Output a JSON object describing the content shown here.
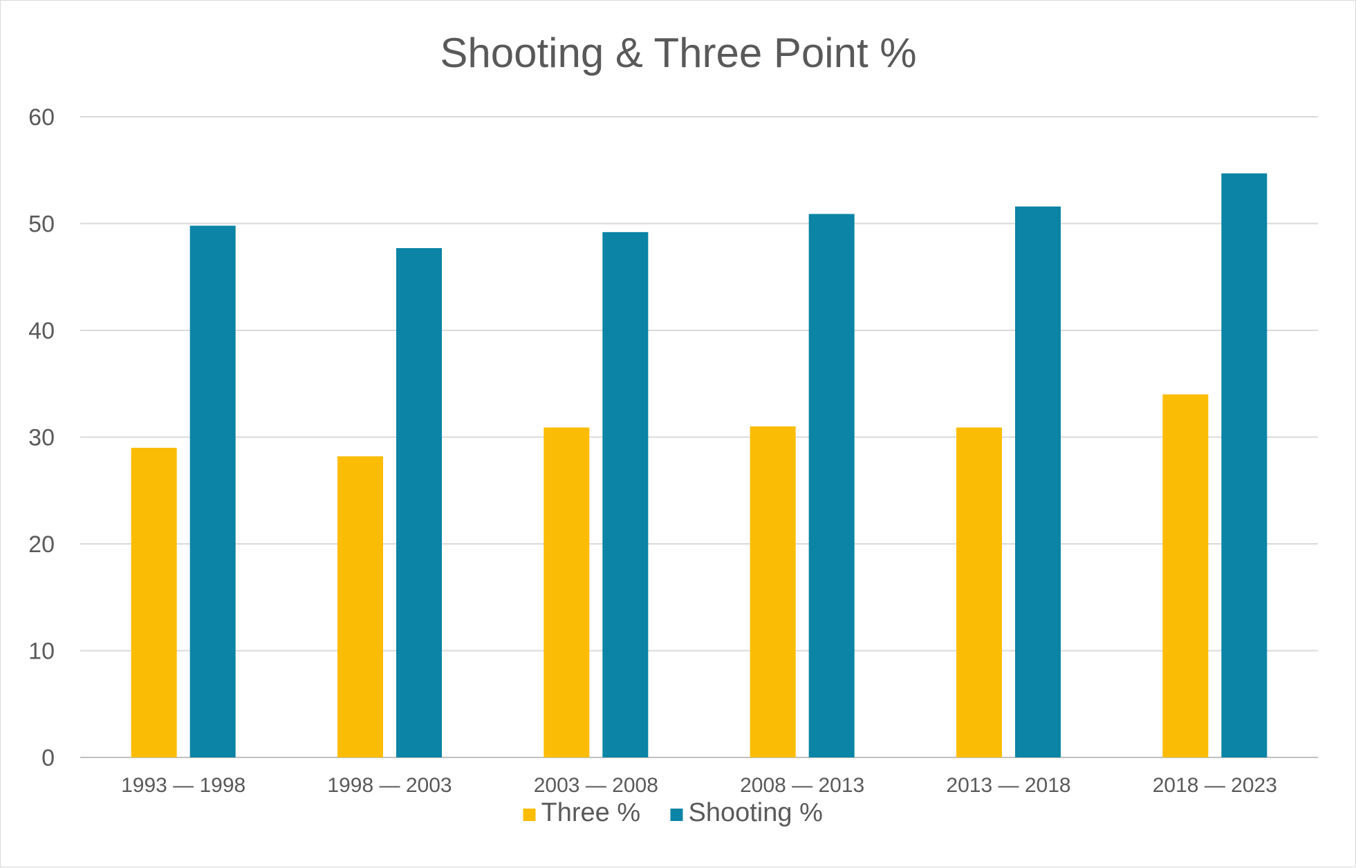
{
  "chart_data": {
    "type": "bar",
    "title": "Shooting & Three Point %",
    "xlabel": "",
    "ylabel": "",
    "categories": [
      "1993 — 1998",
      "1998 — 2003",
      "2003 — 2008",
      "2008 — 2013",
      "2013 — 2018",
      "2018 — 2023"
    ],
    "series": [
      {
        "name": "Three %",
        "color": "#FBBC05",
        "values": [
          29.0,
          28.2,
          30.9,
          31.0,
          30.9,
          34.0
        ]
      },
      {
        "name": "Shooting %",
        "color": "#0B84A5",
        "values": [
          49.8,
          47.7,
          49.2,
          50.9,
          51.6,
          54.7
        ]
      }
    ],
    "ylim": [
      0,
      60
    ],
    "yticks": [
      "0",
      "10",
      "20",
      "30",
      "40",
      "50",
      "60"
    ],
    "grid": true,
    "legend_position": "bottom"
  }
}
